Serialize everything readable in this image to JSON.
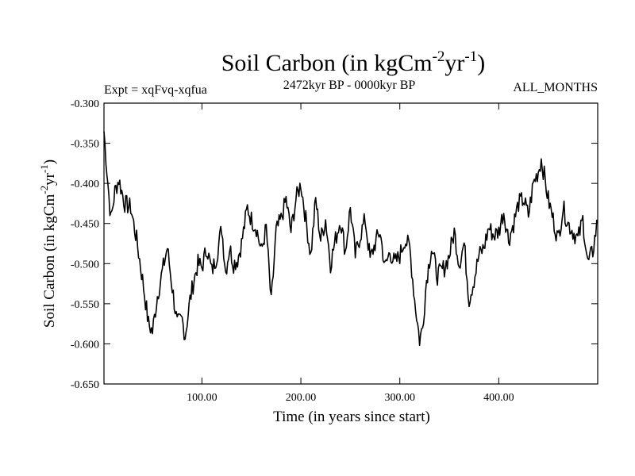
{
  "chart_data": {
    "type": "line",
    "title": {
      "main": "Soil Carbon (in kgCm",
      "sup1": "-2",
      "mid": "yr",
      "sup2": "-1",
      "end": ")"
    },
    "expt": "Expt = xqFvq-xqfua",
    "period": "2472kyr BP - 0000kyr BP",
    "months": "ALL_MONTHS",
    "xlabel": "Time (in years since start)",
    "ylabel": {
      "main": "Soil Carbon (in kgCm",
      "sup1": "-2",
      "mid": "yr",
      "sup2": "-1",
      "end": ")"
    },
    "xlim": [
      1,
      500
    ],
    "ylim": [
      -0.65,
      -0.3
    ],
    "xticks": [
      100,
      200,
      300,
      400
    ],
    "xtick_labels": [
      "100.00",
      "200.00",
      "300.00",
      "400.00"
    ],
    "yticks": [
      -0.3,
      -0.35,
      -0.4,
      -0.45,
      -0.5,
      -0.55,
      -0.6,
      -0.65
    ],
    "ytick_labels": [
      "-0.300",
      "-0.350",
      "-0.400",
      "-0.450",
      "-0.500",
      "-0.550",
      "-0.600",
      "-0.650"
    ],
    "series_key_points": {
      "x": [
        1,
        5,
        8,
        12,
        16,
        22,
        28,
        34,
        40,
        46,
        50,
        55,
        60,
        65,
        70,
        75,
        80,
        83,
        88,
        92,
        96,
        100,
        105,
        110,
        115,
        120,
        124,
        128,
        132,
        136,
        140,
        146,
        150,
        155,
        160,
        165,
        170,
        175,
        180,
        185,
        190,
        195,
        200,
        205,
        210,
        215,
        220,
        225,
        230,
        235,
        240,
        245,
        250,
        255,
        260,
        265,
        270,
        275,
        280,
        285,
        290,
        295,
        300,
        305,
        310,
        315,
        320,
        323,
        327,
        332,
        338,
        345,
        350,
        355,
        360,
        365,
        370,
        375,
        380,
        385,
        390,
        395,
        400,
        405,
        410,
        415,
        420,
        425,
        430,
        435,
        440,
        443,
        446,
        450,
        455,
        460,
        465,
        470,
        475,
        480,
        485,
        490,
        495,
        500
      ],
      "y": [
        -0.335,
        -0.4,
        -0.445,
        -0.41,
        -0.395,
        -0.425,
        -0.43,
        -0.47,
        -0.52,
        -0.575,
        -0.585,
        -0.54,
        -0.51,
        -0.48,
        -0.53,
        -0.575,
        -0.57,
        -0.59,
        -0.545,
        -0.52,
        -0.5,
        -0.505,
        -0.48,
        -0.51,
        -0.49,
        -0.455,
        -0.51,
        -0.48,
        -0.5,
        -0.495,
        -0.475,
        -0.43,
        -0.445,
        -0.455,
        -0.485,
        -0.455,
        -0.55,
        -0.46,
        -0.445,
        -0.42,
        -0.46,
        -0.42,
        -0.4,
        -0.445,
        -0.49,
        -0.42,
        -0.47,
        -0.445,
        -0.5,
        -0.47,
        -0.445,
        -0.485,
        -0.43,
        -0.49,
        -0.465,
        -0.445,
        -0.495,
        -0.475,
        -0.46,
        -0.505,
        -0.485,
        -0.5,
        -0.49,
        -0.47,
        -0.48,
        -0.545,
        -0.595,
        -0.58,
        -0.52,
        -0.48,
        -0.515,
        -0.505,
        -0.49,
        -0.46,
        -0.5,
        -0.475,
        -0.545,
        -0.52,
        -0.49,
        -0.48,
        -0.455,
        -0.465,
        -0.46,
        -0.435,
        -0.47,
        -0.45,
        -0.425,
        -0.42,
        -0.44,
        -0.4,
        -0.385,
        -0.37,
        -0.39,
        -0.42,
        -0.445,
        -0.47,
        -0.43,
        -0.45,
        -0.46,
        -0.47,
        -0.445,
        -0.5,
        -0.485,
        -0.445
      ]
    },
    "samples": 500,
    "noise_amplitude": 0.012,
    "grid": false,
    "legend": "none"
  }
}
